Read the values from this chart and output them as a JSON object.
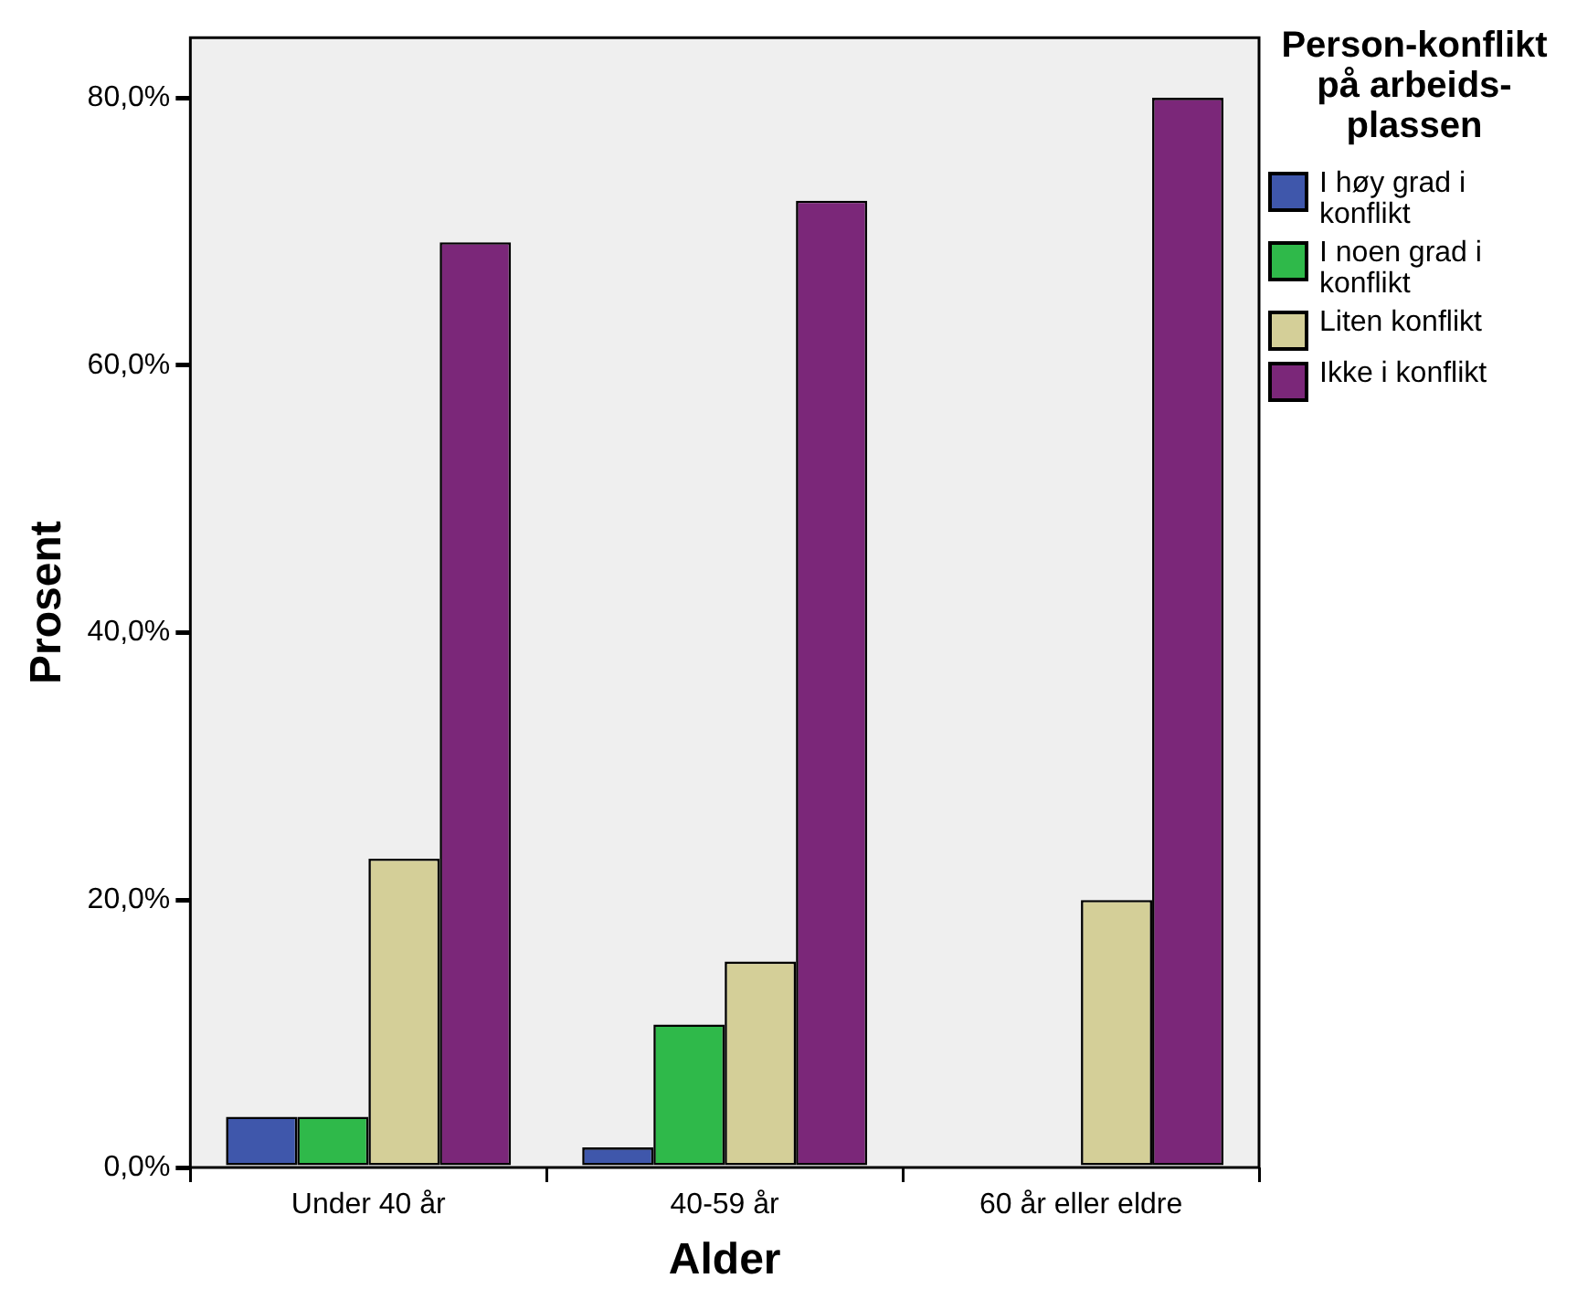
{
  "chart_data": {
    "type": "bar",
    "xlabel": "Alder",
    "ylabel": "Prosent",
    "legend_title": "Person-konflikt på arbeids-plassen",
    "categories": [
      "Under 40 år",
      "40-59 år",
      "60 år eller eldre"
    ],
    "series": [
      {
        "name": "I høy grad i konflikt",
        "color": "#3f57ab",
        "values": [
          3.8,
          1.5,
          0
        ]
      },
      {
        "name": "I noen grad i konflikt",
        "color": "#2fb94a",
        "values": [
          3.8,
          10.7,
          0
        ]
      },
      {
        "name": "Liten konflikt",
        "color": "#d4cf98",
        "values": [
          23.1,
          15.4,
          20.0
        ]
      },
      {
        "name": "Ikke i konflikt",
        "color": "#7b2779",
        "values": [
          69.2,
          72.3,
          80.0
        ]
      }
    ],
    "ylim": [
      0,
      84.5
    ],
    "yticks": [
      {
        "value": 0,
        "label": "0,0%"
      },
      {
        "value": 20,
        "label": "20,0%"
      },
      {
        "value": 40,
        "label": "40,0%"
      },
      {
        "value": 60,
        "label": "60,0%"
      },
      {
        "value": 80,
        "label": "80,0%"
      }
    ],
    "grid": false,
    "legend": "right"
  }
}
